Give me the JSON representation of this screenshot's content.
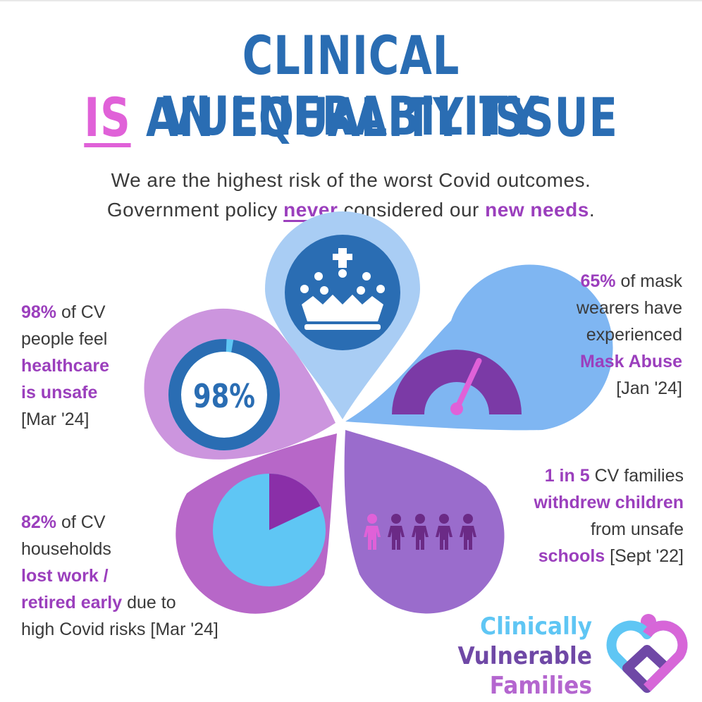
{
  "title": {
    "line1": "CLINICAL VULNERABILITY",
    "line2_is": "IS",
    "line2_rest": " AN EQUALITY ISSUE"
  },
  "subtitle": {
    "line1": "We are the highest risk of the worst Covid outcomes.",
    "line2_a": "Government policy ",
    "line2_never": "never",
    "line2_b": " considered our ",
    "line2_needs": "new needs",
    "line2_end": "."
  },
  "stats": {
    "healthcare": {
      "value": "98%",
      "line1": " of CV",
      "line2": "people feel",
      "line3": "healthcare",
      "line4": "is unsafe",
      "line5": "[Mar '24]"
    },
    "mask": {
      "value": "65%",
      "line1": " of mask",
      "line2": "wearers have",
      "line3": "experienced",
      "line4": "Mask Abuse",
      "line5": "[Jan '24]"
    },
    "school": {
      "value": "1 in 5",
      "line1": " CV families",
      "line2": "withdrew children",
      "line3": "from unsafe",
      "line4": "schools",
      "line5": " [Sept '22]"
    },
    "work": {
      "value": "82%",
      "line1": " of CV",
      "line2": "households",
      "line3": "lost work /",
      "line4": "retired early",
      "line5": " due to",
      "line6": "high Covid risks [Mar '24]"
    }
  },
  "donut": {
    "label": "98%",
    "fraction": 0.98
  },
  "gauge": {
    "fraction": 0.65
  },
  "pie": {
    "fraction": 0.82
  },
  "people": {
    "total": 5,
    "highlighted": 1
  },
  "logo": {
    "line1": "Clinically",
    "line2": "Vulnerable",
    "line3": "Families"
  },
  "icons": [
    "crown-icon",
    "gauge-icon",
    "people-icon",
    "pie-icon",
    "donut-icon",
    "heart-logo-icon"
  ],
  "colors": {
    "title_blue": "#2a6db3",
    "accent_pink": "#e061d8",
    "accent_purple": "#9b3fbd",
    "petal_crown": "#a9cdf4",
    "petal_gauge": "#7fb6f2",
    "petal_people": "#9a6ccc",
    "petal_pie": "#b767c8",
    "petal_donut": "#cc95de"
  }
}
